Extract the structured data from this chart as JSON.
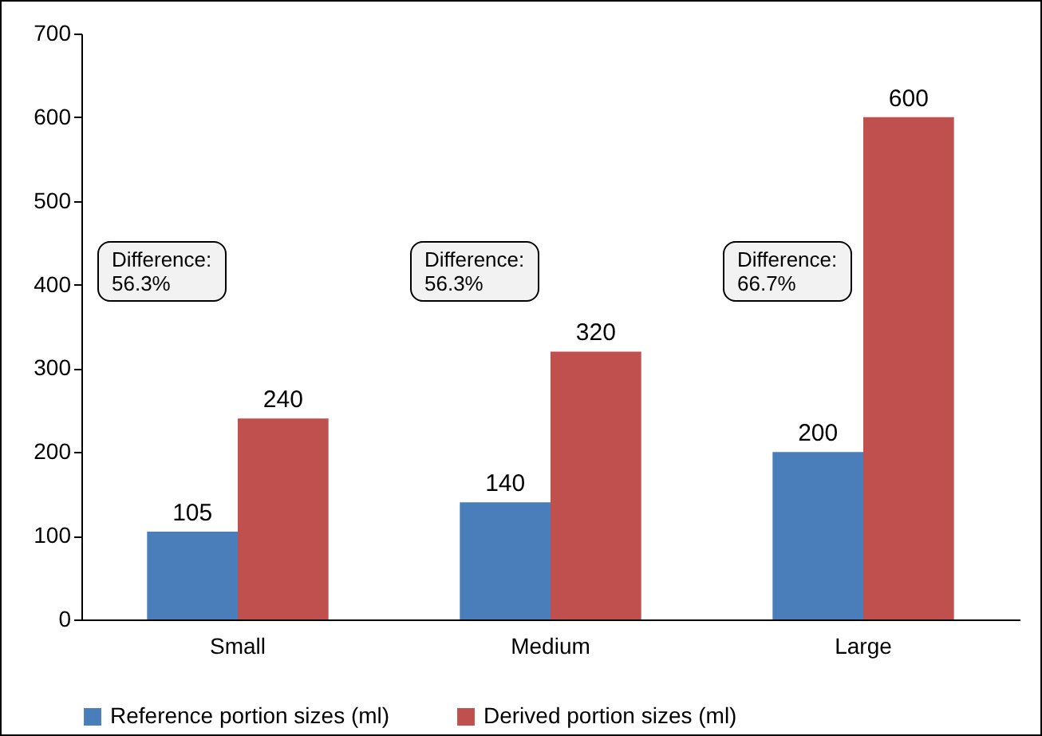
{
  "chart_data": {
    "type": "bar",
    "categories": [
      "Small",
      "Medium",
      "Large"
    ],
    "series": [
      {
        "name": "Reference portion sizes (ml)",
        "color": "#4a7ebb",
        "values": [
          105,
          140,
          200
        ]
      },
      {
        "name": "Derived portion sizes (ml)",
        "color": "#c0504d",
        "values": [
          240,
          320,
          600
        ]
      }
    ],
    "ylim": [
      0,
      700
    ],
    "yticks": [
      0,
      100,
      200,
      300,
      400,
      500,
      600,
      700
    ],
    "grid": false,
    "legend": "bottom",
    "data_labels": true,
    "annotations": [
      "Difference:\n56.3%",
      "Difference:\n56.3%",
      "Difference:\n66.7%"
    ]
  }
}
